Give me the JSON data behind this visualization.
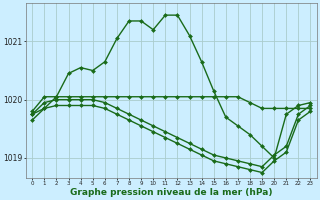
{
  "bg_color": "#cceeff",
  "grid_color": "#aacccc",
  "line_color": "#1a6b1a",
  "marker_color": "#1a6b1a",
  "xlabel": "Graphe pression niveau de la mer (hPa)",
  "xlabel_fontsize": 6.5,
  "xlim": [
    -0.5,
    23.5
  ],
  "ylim": [
    1018.65,
    1021.65
  ],
  "yticks": [
    1019,
    1020,
    1021
  ],
  "xticks": [
    0,
    1,
    2,
    3,
    4,
    5,
    6,
    7,
    8,
    9,
    10,
    11,
    12,
    13,
    14,
    15,
    16,
    17,
    18,
    19,
    20,
    21,
    22,
    23
  ],
  "series": [
    {
      "x": [
        0,
        1,
        2,
        3,
        4,
        5,
        6,
        7,
        8,
        9,
        10,
        11,
        12,
        13,
        14,
        15,
        16,
        17,
        18,
        19,
        20,
        21,
        22,
        23
      ],
      "y": [
        1019.75,
        1019.85,
        1020.05,
        1020.45,
        1020.55,
        1020.5,
        1020.65,
        1021.05,
        1021.35,
        1021.35,
        1021.2,
        1021.45,
        1021.45,
        1021.1,
        1020.65,
        1020.15,
        1019.7,
        1019.55,
        1019.4,
        1019.2,
        1019.0,
        1019.75,
        1019.9,
        1019.95
      ],
      "marker": "D",
      "markersize": 2.0,
      "linewidth": 1.0
    },
    {
      "x": [
        0,
        1,
        2,
        3,
        4,
        5,
        6,
        7,
        8,
        9,
        10,
        11,
        12,
        13,
        14,
        15,
        16,
        17,
        18,
        19,
        20,
        21,
        22,
        23
      ],
      "y": [
        1019.8,
        1020.05,
        1020.05,
        1020.05,
        1020.05,
        1020.05,
        1020.05,
        1020.05,
        1020.05,
        1020.05,
        1020.05,
        1020.05,
        1020.05,
        1020.05,
        1020.05,
        1020.05,
        1020.05,
        1020.05,
        1019.95,
        1019.85,
        1019.85,
        1019.85,
        1019.85,
        1019.85
      ],
      "marker": "D",
      "markersize": 2.0,
      "linewidth": 1.0
    },
    {
      "x": [
        0,
        1,
        2,
        3,
        4,
        5,
        6,
        7,
        8,
        9,
        10,
        11,
        12,
        13,
        14,
        15,
        16,
        17,
        18,
        19,
        20,
        21,
        22,
        23
      ],
      "y": [
        1019.75,
        1019.95,
        1020.0,
        1020.0,
        1020.0,
        1020.0,
        1019.95,
        1019.85,
        1019.75,
        1019.65,
        1019.55,
        1019.45,
        1019.35,
        1019.25,
        1019.15,
        1019.05,
        1019.0,
        1018.95,
        1018.9,
        1018.85,
        1019.05,
        1019.2,
        1019.75,
        1019.9
      ],
      "marker": "D",
      "markersize": 2.0,
      "linewidth": 1.0
    },
    {
      "x": [
        0,
        1,
        2,
        3,
        4,
        5,
        6,
        7,
        8,
        9,
        10,
        11,
        12,
        13,
        14,
        15,
        16,
        17,
        18,
        19,
        20,
        21,
        22,
        23
      ],
      "y": [
        1019.65,
        1019.85,
        1019.9,
        1019.9,
        1019.9,
        1019.9,
        1019.85,
        1019.75,
        1019.65,
        1019.55,
        1019.45,
        1019.35,
        1019.25,
        1019.15,
        1019.05,
        1018.95,
        1018.9,
        1018.85,
        1018.8,
        1018.75,
        1018.95,
        1019.1,
        1019.65,
        1019.8
      ],
      "marker": "D",
      "markersize": 2.0,
      "linewidth": 1.0
    }
  ]
}
